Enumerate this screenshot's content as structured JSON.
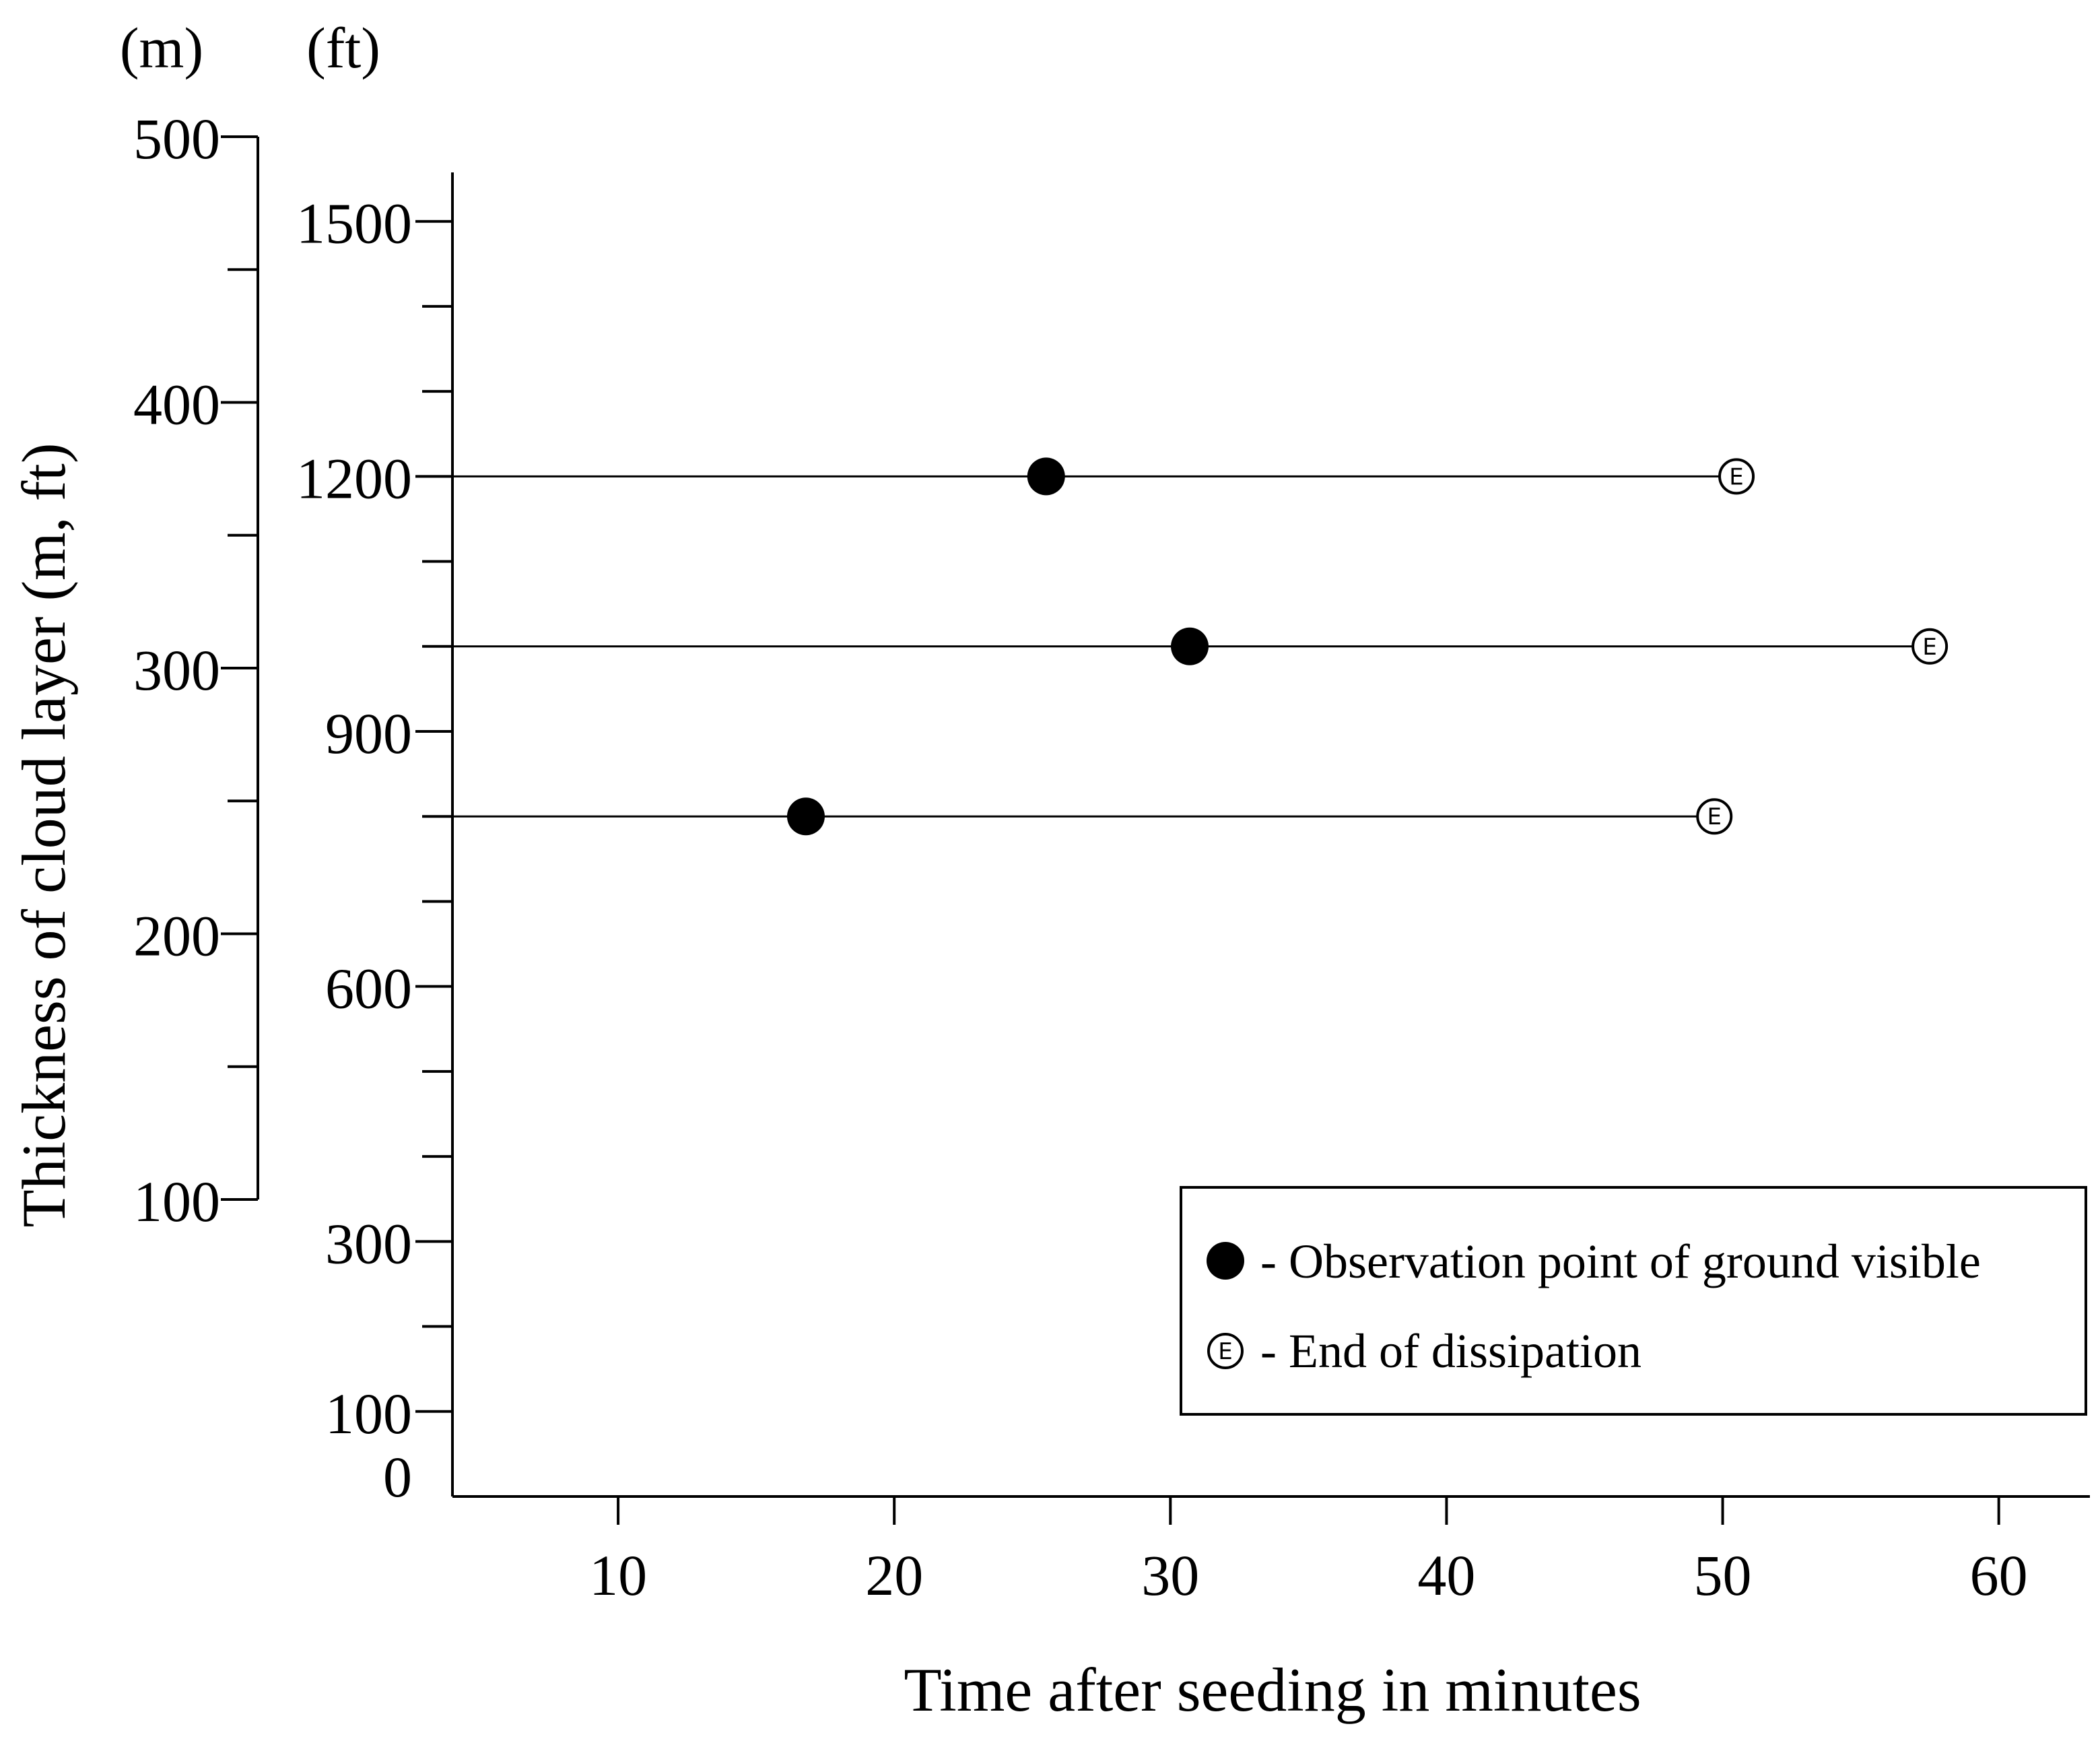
{
  "chart_data": {
    "type": "scatter",
    "title": "",
    "xlabel": "Time after seeding in minutes",
    "ylabel": "Thickness of cloud layer (m, ft)",
    "x_axis": {
      "range": [
        4,
        63.3
      ],
      "ticks": [
        10,
        20,
        30,
        40,
        50,
        60
      ],
      "tick_labels": [
        "10",
        "20",
        "30",
        "40",
        "50",
        "60"
      ]
    },
    "y_axis_ft": {
      "unit_label": "(ft)",
      "range": [
        0,
        1600
      ],
      "major_ticks": [
        100,
        300,
        600,
        900,
        1200,
        1500
      ],
      "tick_labels": [
        "100",
        "300",
        "600",
        "900",
        "1200",
        "1500"
      ],
      "minor_ticks": [
        200,
        400,
        500,
        700,
        800,
        1000,
        1100,
        1300,
        1400
      ],
      "zero_label": "0"
    },
    "y_axis_m": {
      "unit_label": "(m)",
      "range": [
        100,
        500
      ],
      "major_ticks": [
        100,
        200,
        300,
        400,
        500
      ],
      "tick_labels": [
        "100",
        "200",
        "300",
        "400",
        "500"
      ],
      "minor_ticks": [
        150,
        250,
        350,
        450
      ]
    },
    "series": [
      {
        "name": "Observation point of ground visible",
        "marker": "filled-circle",
        "points": [
          {
            "x": 25.5,
            "y_ft": 1200
          },
          {
            "x": 30.7,
            "y_ft": 1000
          },
          {
            "x": 16.8,
            "y_ft": 800
          }
        ]
      },
      {
        "name": "End of dissipation",
        "marker": "circled-E",
        "glyph": "E",
        "points": [
          {
            "x": 50.5,
            "y_ft": 1200
          },
          {
            "x": 57.5,
            "y_ft": 1000
          },
          {
            "x": 49.7,
            "y_ft": 800
          }
        ]
      }
    ],
    "lines": [
      {
        "y_ft": 1200,
        "x_end": 50.5
      },
      {
        "y_ft": 1000,
        "x_end": 57.5
      },
      {
        "y_ft": 800,
        "x_end": 49.7
      }
    ],
    "legend": {
      "position": "bottom-right",
      "entries": [
        {
          "label": "- Observation point of ground visible",
          "marker": "filled-circle"
        },
        {
          "label": "- End of dissipation",
          "marker": "circled-E"
        }
      ]
    },
    "colors": {
      "ink": "#000000",
      "background": "#ffffff"
    }
  }
}
